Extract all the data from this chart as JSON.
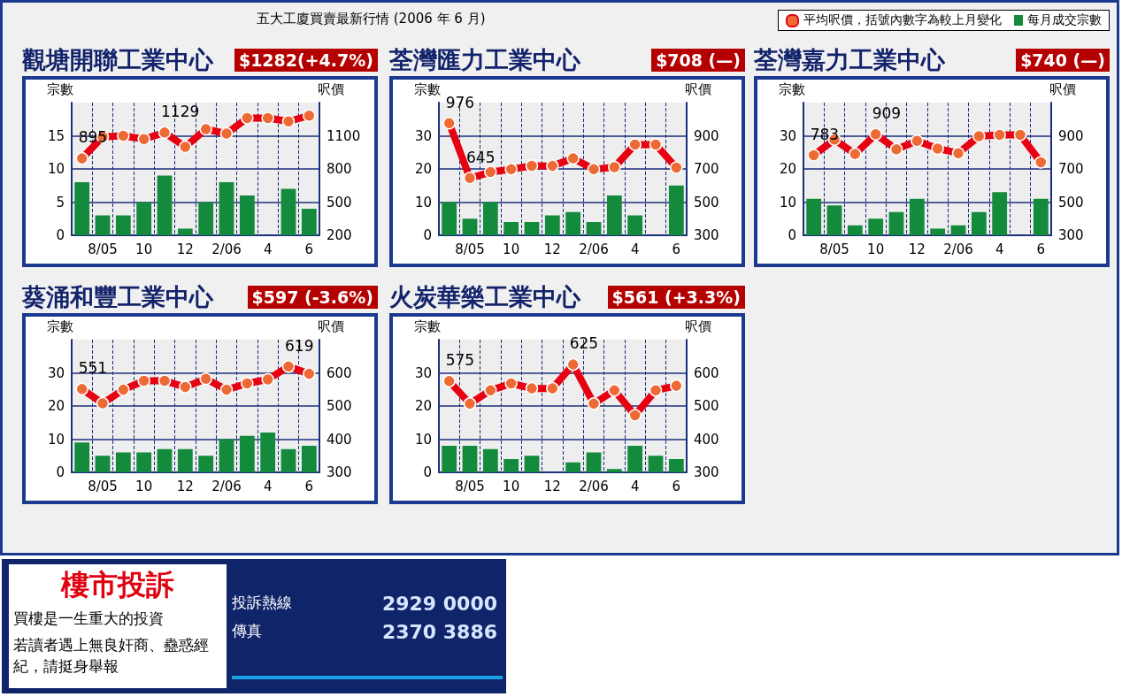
{
  "chart_data": [
    {
      "type": "other",
      "title": "五大工廈買賣最新行情 (2006 年 6 月)"
    },
    {
      "type": "bar",
      "title": "觀塘開聯工業中心",
      "subtitle": "$1282(+4.7%)",
      "ylabel": "宗數",
      "y2label": "呎價",
      "categories": [
        null,
        "8/05",
        null,
        "10",
        null,
        "12",
        null,
        "2/06",
        null,
        "4",
        null,
        "6"
      ],
      "ylim": [
        0,
        20
      ],
      "yticks": [
        0,
        5,
        10,
        15
      ],
      "y2lim": [
        200,
        1400
      ],
      "y2ticks": [
        200,
        500,
        800,
        1100
      ],
      "grid": true,
      "legend": "top right",
      "marker": "circle",
      "series": [
        {
          "type": "bar",
          "name": "每月成交宗數",
          "color": "#138a3c",
          "values": [
            8,
            3,
            3,
            5,
            9,
            1,
            5,
            8,
            6,
            0,
            7,
            4
          ]
        },
        {
          "type": "line",
          "axis": "y2",
          "name": "平均呎價，括號內數字為較上月變化",
          "color": "#e60012",
          "values": [
            895,
            1090,
            1100,
            1070,
            1129,
            1000,
            1160,
            1120,
            1260,
            1260,
            1230,
            1282
          ],
          "value_labels": [
            "895",
            null,
            null,
            null,
            "1129",
            null,
            null,
            null,
            null,
            null,
            null,
            null
          ]
        }
      ]
    },
    {
      "type": "bar",
      "title": "荃灣匯力工業中心",
      "subtitle": "$708 (—)",
      "ylabel": "宗數",
      "y2label": "呎價",
      "categories": [
        null,
        "8/05",
        null,
        "10",
        null,
        "12",
        null,
        "2/06",
        null,
        "4",
        null,
        "6"
      ],
      "ylim": [
        0,
        40
      ],
      "yticks": [
        0,
        10,
        20,
        30
      ],
      "y2lim": [
        300,
        1100
      ],
      "y2ticks": [
        300,
        500,
        700,
        900
      ],
      "grid": true,
      "marker": "circle",
      "series": [
        {
          "type": "bar",
          "color": "#138a3c",
          "values": [
            10,
            5,
            10,
            4,
            4,
            6,
            7,
            4,
            12,
            6,
            0,
            15
          ]
        },
        {
          "type": "line",
          "axis": "y2",
          "color": "#e60012",
          "values": [
            976,
            645,
            681,
            698,
            719,
            718,
            764,
            698,
            711,
            847,
            847,
            708
          ],
          "value_labels": [
            "976",
            "645",
            null,
            null,
            null,
            null,
            null,
            null,
            null,
            null,
            null,
            null
          ]
        }
      ]
    },
    {
      "type": "bar",
      "title": "荃灣嘉力工業中心",
      "subtitle": "$740 (—)",
      "ylabel": "宗數",
      "y2label": "呎價",
      "categories": [
        null,
        "8/05",
        null,
        "10",
        null,
        "12",
        null,
        "2/06",
        null,
        "4",
        null,
        "6"
      ],
      "ylim": [
        0,
        40
      ],
      "yticks": [
        0,
        10,
        20,
        30
      ],
      "y2lim": [
        300,
        1100
      ],
      "y2ticks": [
        300,
        500,
        700,
        900
      ],
      "grid": true,
      "marker": "circle",
      "series": [
        {
          "type": "bar",
          "color": "#138a3c",
          "values": [
            11,
            9,
            3,
            5,
            7,
            11,
            2,
            3,
            7,
            13,
            0,
            11
          ]
        },
        {
          "type": "line",
          "axis": "y2",
          "color": "#e60012",
          "values": [
            783,
            877,
            790,
            909,
            818,
            869,
            823,
            795,
            897,
            905,
            905,
            740
          ],
          "value_labels": [
            "783",
            null,
            null,
            "909",
            null,
            null,
            null,
            null,
            null,
            null,
            null,
            null
          ]
        }
      ]
    },
    {
      "type": "bar",
      "title": "葵涌和豐工業中心",
      "subtitle": "$597 (-3.6%)",
      "ylabel": "宗數",
      "y2label": "呎價",
      "categories": [
        null,
        "8/05",
        null,
        "10",
        null,
        "12",
        null,
        "2/06",
        null,
        "4",
        null,
        "6"
      ],
      "ylim": [
        0,
        40
      ],
      "yticks": [
        0,
        10,
        20,
        30
      ],
      "y2lim": [
        300,
        700
      ],
      "y2ticks": [
        300,
        400,
        500,
        600
      ],
      "grid": true,
      "marker": "circle",
      "series": [
        {
          "type": "bar",
          "color": "#138a3c",
          "values": [
            9,
            5,
            6,
            6,
            7,
            7,
            5,
            10,
            11,
            12,
            7,
            8
          ]
        },
        {
          "type": "line",
          "axis": "y2",
          "color": "#e60012",
          "values": [
            551,
            508,
            549,
            576,
            576,
            557,
            582,
            549,
            568,
            580,
            619,
            597
          ],
          "value_labels": [
            "551",
            null,
            null,
            null,
            null,
            null,
            null,
            null,
            null,
            null,
            "619",
            null
          ]
        }
      ]
    },
    {
      "type": "bar",
      "title": "火炭華樂工業中心",
      "subtitle": "$561 (+3.3%)",
      "ylabel": "宗數",
      "y2label": "呎價",
      "categories": [
        null,
        "8/05",
        null,
        "10",
        null,
        "12",
        null,
        "2/06",
        null,
        "4",
        null,
        "6"
      ],
      "ylim": [
        0,
        40
      ],
      "yticks": [
        0,
        10,
        20,
        30
      ],
      "y2lim": [
        300,
        700
      ],
      "y2ticks": [
        300,
        400,
        500,
        600
      ],
      "grid": true,
      "marker": "circle",
      "series": [
        {
          "type": "bar",
          "color": "#138a3c",
          "values": [
            8,
            8,
            7,
            4,
            5,
            0,
            3,
            6,
            1,
            8,
            5,
            4
          ]
        },
        {
          "type": "line",
          "axis": "y2",
          "color": "#e60012",
          "values": [
            575,
            507,
            547,
            568,
            553,
            553,
            625,
            507,
            547,
            472,
            547,
            561
          ],
          "value_labels": [
            "575",
            null,
            null,
            null,
            null,
            null,
            "625",
            null,
            null,
            null,
            null,
            null
          ]
        }
      ]
    },
    {
      "type": "other",
      "title": "樓市投訴",
      "annotations": [
        "買樓是一生重大的投資",
        "若讀者遇上無良奸商、蠱惑經紀，請挺身舉報",
        "投訴熱線",
        "2929 0000",
        "傳真",
        "2370 3886"
      ]
    }
  ]
}
